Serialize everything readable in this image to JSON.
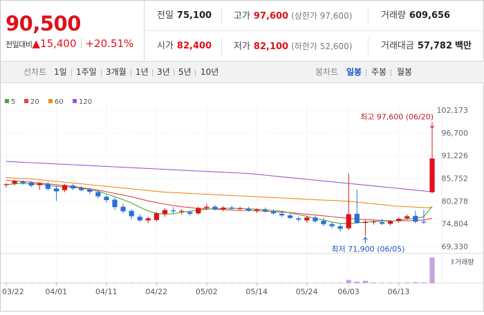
{
  "summary": {
    "price": "90,500",
    "change_label": "전일대비",
    "change_arrow": "▲",
    "change_value": "15,400",
    "change_pct": "+20.51%"
  },
  "stats": {
    "prev_close_label": "전일",
    "prev_close": "75,100",
    "high_label": "고가",
    "high": "97,600",
    "high_sub": "(상한가 97,600)",
    "volume_label": "거래량",
    "volume": "609,656",
    "open_label": "시가",
    "open": "82,400",
    "low_label": "저가",
    "low": "82,100",
    "low_sub": "(하한가 52,600)",
    "value_label": "거래대금",
    "value": "57,782",
    "value_unit": "백만"
  },
  "toolbar": {
    "line_label": "선차트",
    "line_ranges": [
      "1일",
      "1주일",
      "3개월",
      "1년",
      "3년",
      "5년",
      "10년"
    ],
    "candle_label": "봉차트",
    "candle_ranges": [
      "일봉",
      "주봉",
      "월봉"
    ],
    "active_candle": "일봉"
  },
  "colors": {
    "up": "#e0101a",
    "down": "#2a6fdb",
    "ma5": "#4aa33a",
    "ma20": "#e54040",
    "ma60": "#f08a1c",
    "ma120": "#9a5ac8",
    "volume_up": "#c9a2e0"
  },
  "chart_data": {
    "type": "candlestick",
    "legend": [
      {
        "name": "5",
        "color": "#4aa33a"
      },
      {
        "name": "20",
        "color": "#e54040"
      },
      {
        "name": "60",
        "color": "#f08a1c"
      },
      {
        "name": "120",
        "color": "#9a5ac8"
      }
    ],
    "y_ticks": [
      "102,173",
      "96,700",
      "91,226",
      "85,752",
      "80,278",
      "74,804",
      "69,330"
    ],
    "ylim": [
      69330,
      102173
    ],
    "x_ticks": [
      "03/22",
      "04/01",
      "04/11",
      "04/22",
      "05/02",
      "05/14",
      "05/24",
      "06/03",
      "06/13"
    ],
    "x_tick_index": [
      0,
      6,
      12,
      18,
      24,
      30,
      36,
      41,
      47
    ],
    "volume_label": "거래량",
    "max_annotation": "최고 97,600 (06/20)",
    "min_annotation": "최저 71,900 (06/05)",
    "max_index": 51,
    "min_index": 43,
    "candles": [
      {
        "o": 84100,
        "h": 84600,
        "l": 83500,
        "c": 84300
      },
      {
        "o": 84500,
        "h": 85400,
        "l": 84000,
        "c": 85100
      },
      {
        "o": 85000,
        "h": 85300,
        "l": 84200,
        "c": 84600
      },
      {
        "o": 84700,
        "h": 85100,
        "l": 83600,
        "c": 84000
      },
      {
        "o": 84100,
        "h": 84700,
        "l": 83000,
        "c": 84500
      },
      {
        "o": 84400,
        "h": 84900,
        "l": 82800,
        "c": 83200
      },
      {
        "o": 83300,
        "h": 84000,
        "l": 80300,
        "c": 82600
      },
      {
        "o": 82900,
        "h": 84400,
        "l": 82400,
        "c": 84100
      },
      {
        "o": 84000,
        "h": 84400,
        "l": 82900,
        "c": 83300
      },
      {
        "o": 83400,
        "h": 83900,
        "l": 82600,
        "c": 82900
      },
      {
        "o": 83000,
        "h": 83500,
        "l": 81900,
        "c": 82500
      },
      {
        "o": 82400,
        "h": 82900,
        "l": 80900,
        "c": 81400
      },
      {
        "o": 81300,
        "h": 81800,
        "l": 79900,
        "c": 80500
      },
      {
        "o": 80600,
        "h": 81100,
        "l": 78100,
        "c": 78800
      },
      {
        "o": 78900,
        "h": 79600,
        "l": 77300,
        "c": 77800
      },
      {
        "o": 77900,
        "h": 78300,
        "l": 75900,
        "c": 76600
      },
      {
        "o": 76500,
        "h": 77100,
        "l": 75300,
        "c": 75600
      },
      {
        "o": 75600,
        "h": 76500,
        "l": 75000,
        "c": 76100
      },
      {
        "o": 75700,
        "h": 77700,
        "l": 75300,
        "c": 77300
      },
      {
        "o": 77200,
        "h": 78600,
        "l": 76500,
        "c": 78100
      },
      {
        "o": 78000,
        "h": 78800,
        "l": 77300,
        "c": 77800
      },
      {
        "o": 77700,
        "h": 78300,
        "l": 77000,
        "c": 77900
      },
      {
        "o": 77600,
        "h": 78000,
        "l": 76800,
        "c": 77200
      },
      {
        "o": 77300,
        "h": 78900,
        "l": 77000,
        "c": 78600
      },
      {
        "o": 78600,
        "h": 79600,
        "l": 78100,
        "c": 78900
      },
      {
        "o": 78900,
        "h": 79300,
        "l": 78000,
        "c": 78300
      },
      {
        "o": 78300,
        "h": 79000,
        "l": 77800,
        "c": 78700
      },
      {
        "o": 78700,
        "h": 79100,
        "l": 78200,
        "c": 78400
      },
      {
        "o": 78400,
        "h": 78900,
        "l": 77900,
        "c": 78500
      },
      {
        "o": 78400,
        "h": 78900,
        "l": 77700,
        "c": 78000
      },
      {
        "o": 78000,
        "h": 78500,
        "l": 77400,
        "c": 78200
      },
      {
        "o": 78200,
        "h": 78700,
        "l": 77500,
        "c": 77800
      },
      {
        "o": 77800,
        "h": 78200,
        "l": 77000,
        "c": 77300
      },
      {
        "o": 77200,
        "h": 77900,
        "l": 76400,
        "c": 76800
      },
      {
        "o": 76800,
        "h": 77300,
        "l": 75900,
        "c": 76200
      },
      {
        "o": 76100,
        "h": 76600,
        "l": 75300,
        "c": 75800
      },
      {
        "o": 75600,
        "h": 76700,
        "l": 75000,
        "c": 76300
      },
      {
        "o": 76300,
        "h": 76700,
        "l": 75000,
        "c": 75400
      },
      {
        "o": 75500,
        "h": 76200,
        "l": 74200,
        "c": 74700
      },
      {
        "o": 74700,
        "h": 75300,
        "l": 73700,
        "c": 74200
      },
      {
        "o": 74200,
        "h": 74700,
        "l": 72900,
        "c": 73600
      },
      {
        "o": 73700,
        "h": 86900,
        "l": 73300,
        "c": 77100
      },
      {
        "o": 77200,
        "h": 83000,
        "l": 74800,
        "c": 75000
      },
      {
        "o": 75000,
        "h": 75900,
        "l": 71900,
        "c": 75200
      },
      {
        "o": 75200,
        "h": 75800,
        "l": 74600,
        "c": 75300
      },
      {
        "o": 75200,
        "h": 76000,
        "l": 74500,
        "c": 74800
      },
      {
        "o": 74800,
        "h": 75700,
        "l": 74400,
        "c": 75400
      },
      {
        "o": 75500,
        "h": 76300,
        "l": 75000,
        "c": 76000
      },
      {
        "o": 76100,
        "h": 77000,
        "l": 75700,
        "c": 76600
      },
      {
        "o": 76700,
        "h": 78000,
        "l": 74900,
        "c": 75300
      },
      {
        "o": 75300,
        "h": 78100,
        "l": 74700,
        "c": 75100
      },
      {
        "o": 82400,
        "h": 97600,
        "l": 82100,
        "c": 90500
      }
    ],
    "volume": [
      0.5,
      0.4,
      0.3,
      0.4,
      0.3,
      0.4,
      0.6,
      0.4,
      0.3,
      0.3,
      0.3,
      0.4,
      0.4,
      0.5,
      0.4,
      0.6,
      0.5,
      0.4,
      0.5,
      0.4,
      0.3,
      0.3,
      0.3,
      0.4,
      0.4,
      0.3,
      0.3,
      0.3,
      0.3,
      0.3,
      0.3,
      0.3,
      0.3,
      0.4,
      0.4,
      0.4,
      0.4,
      0.5,
      0.5,
      0.5,
      0.6,
      4.0,
      2.0,
      3.0,
      0.8,
      0.6,
      0.6,
      0.7,
      0.8,
      1.2,
      1.0,
      32.0
    ],
    "ma5": [
      84200,
      84400,
      84500,
      84400,
      84300,
      84100,
      83800,
      83700,
      83600,
      83400,
      83000,
      82600,
      82000,
      81300,
      80600,
      79800,
      78800,
      77900,
      77300,
      77100,
      77200,
      77600,
      77800,
      78100,
      78300,
      78400,
      78500,
      78500,
      78500,
      78400,
      78300,
      78200,
      78000,
      77800,
      77400,
      77000,
      76600,
      76100,
      75700,
      75200,
      74900,
      74900,
      75000,
      75200,
      75300,
      75500,
      75400,
      75600,
      75900,
      76100,
      76500,
      79000
    ],
    "ma20": [
      85300,
      85100,
      85000,
      84800,
      84600,
      84400,
      84200,
      84000,
      83800,
      83500,
      83200,
      82900,
      82500,
      82100,
      81700,
      81300,
      80800,
      80300,
      79900,
      79500,
      79200,
      78900,
      78700,
      78500,
      78400,
      78300,
      78200,
      78100,
      78000,
      78000,
      77900,
      77800,
      77700,
      77600,
      77500,
      77300,
      77100,
      76900,
      76700,
      76500,
      76300,
      76100,
      75900,
      75800,
      75700,
      75600,
      75500,
      75500,
      75500,
      75600,
      75700,
      76100
    ],
    "ma60": [
      85900,
      85800,
      85700,
      85600,
      85400,
      85200,
      85000,
      84800,
      84600,
      84400,
      84200,
      84000,
      83800,
      83600,
      83400,
      83200,
      83000,
      82800,
      82600,
      82400,
      82300,
      82200,
      82100,
      82000,
      81900,
      81800,
      81700,
      81600,
      81500,
      81400,
      81300,
      81200,
      81100,
      81000,
      80900,
      80800,
      80700,
      80600,
      80500,
      80400,
      80300,
      80200,
      80000,
      79800,
      79600,
      79400,
      79200,
      79000,
      78900,
      78800,
      78700,
      78700
    ],
    "ma120": [
      89800,
      89700,
      89600,
      89500,
      89400,
      89300,
      89200,
      89100,
      89000,
      88900,
      88800,
      88700,
      88600,
      88500,
      88400,
      88300,
      88200,
      88100,
      88000,
      87900,
      87800,
      87700,
      87600,
      87500,
      87400,
      87300,
      87200,
      87100,
      87000,
      86900,
      86700,
      86500,
      86300,
      86100,
      85900,
      85700,
      85500,
      85300,
      85100,
      84900,
      84700,
      84500,
      84300,
      84100,
      83900,
      83700,
      83500,
      83300,
      83100,
      82900,
      82700,
      82500
    ]
  }
}
